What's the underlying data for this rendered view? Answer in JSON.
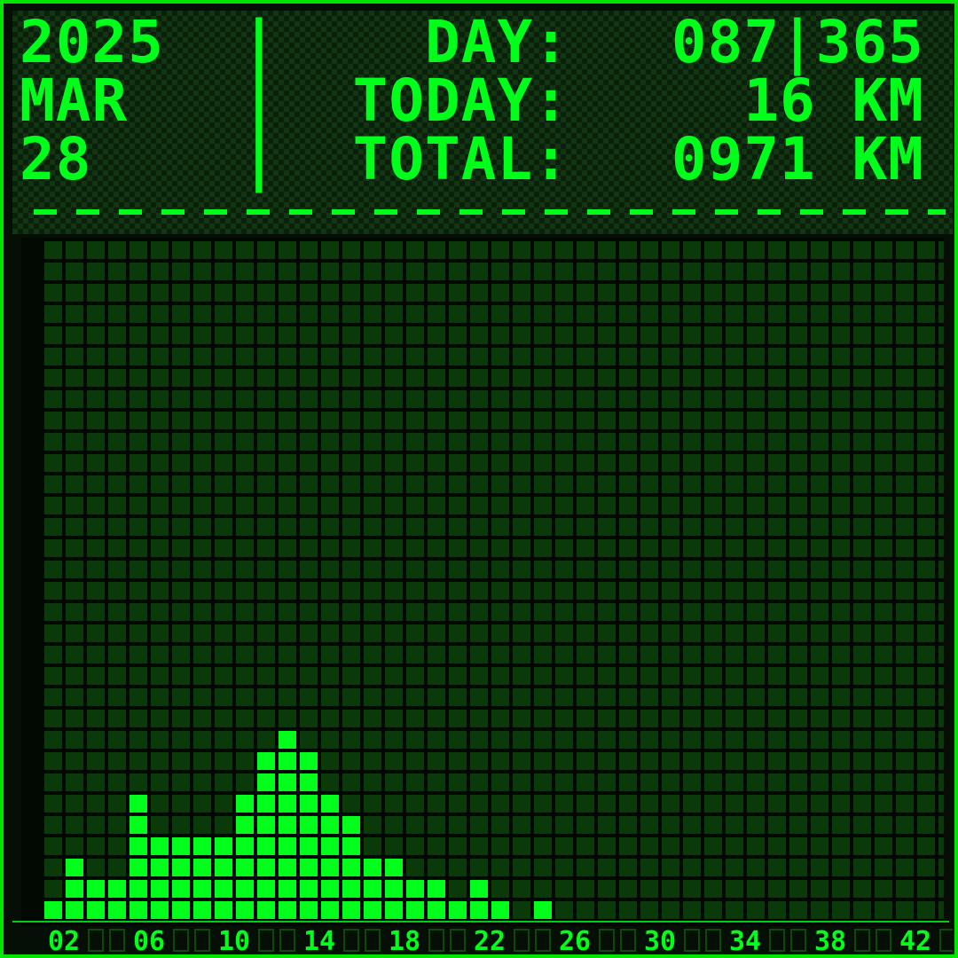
{
  "header": {
    "lines": [
      {
        "left": "2025",
        "sep": "|",
        "label": "DAY:",
        "value": "087|365"
      },
      {
        "left": "MAR",
        "sep": "|",
        "label": "TODAY:",
        "value": "16 KM"
      },
      {
        "left": "28",
        "sep": "|",
        "label": "TOTAL:",
        "value": "0971 KM"
      }
    ]
  },
  "colors": {
    "lit": "#00ff1a",
    "dim_cell": "#0a3a0a",
    "grid_bg": "#020802",
    "frame": "#00e600"
  },
  "chart_data": {
    "type": "bar",
    "x": [
      1,
      2,
      3,
      4,
      5,
      6,
      7,
      8,
      9,
      10,
      11,
      12,
      13,
      14,
      15,
      16,
      17,
      18,
      19,
      20,
      21,
      22,
      23,
      24,
      25,
      26,
      27,
      28,
      29,
      30,
      31,
      32,
      33,
      34,
      35,
      36,
      37,
      38,
      39,
      40,
      41,
      42,
      43
    ],
    "values": [
      1,
      3,
      2,
      2,
      6,
      4,
      4,
      4,
      4,
      6,
      8,
      9,
      8,
      6,
      5,
      3,
      3,
      2,
      2,
      1,
      2,
      1,
      0,
      1,
      0,
      0,
      0,
      0,
      0,
      0,
      0,
      0,
      0,
      0,
      0,
      0,
      0,
      0,
      0,
      0,
      0,
      0,
      0
    ],
    "x_tick_labels": [
      "02",
      "06",
      "10",
      "14",
      "18",
      "22",
      "26",
      "30",
      "34",
      "38",
      "42"
    ],
    "x_ticks": [
      2,
      6,
      10,
      14,
      18,
      22,
      26,
      30,
      34,
      38,
      42
    ],
    "ylim": [
      0,
      32
    ],
    "grid": true
  }
}
